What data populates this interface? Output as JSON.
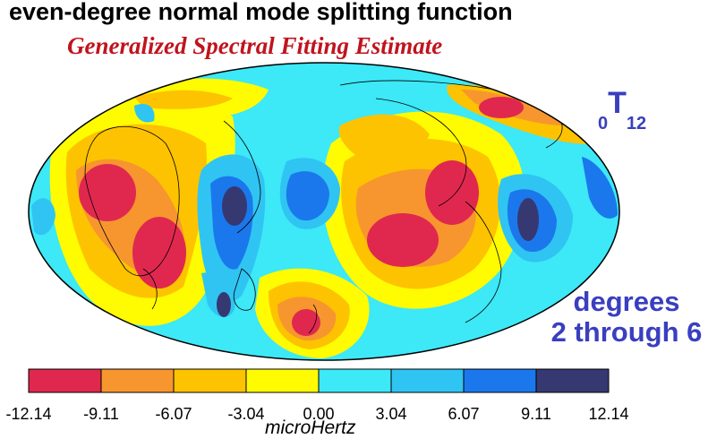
{
  "title": "even-degree normal mode splitting function",
  "subtitle": "Generalized Spectral Fitting Estimate",
  "mode": {
    "overtone": "0",
    "letter": "T",
    "degree": "12"
  },
  "degrees_line1": "degrees",
  "degrees_line2": "2 through 6",
  "colorbar": {
    "unit": "microHertz",
    "ticks": [
      "-12.14",
      "-9.11",
      "-6.07",
      "-3.04",
      "0.00",
      "3.04",
      "6.07",
      "9.11",
      "12.14"
    ],
    "colors": [
      "#e0284f",
      "#f7962e",
      "#fdc300",
      "#fffb00",
      "#3de8f7",
      "#30c4f2",
      "#1a78ec",
      "#363871"
    ]
  }
}
